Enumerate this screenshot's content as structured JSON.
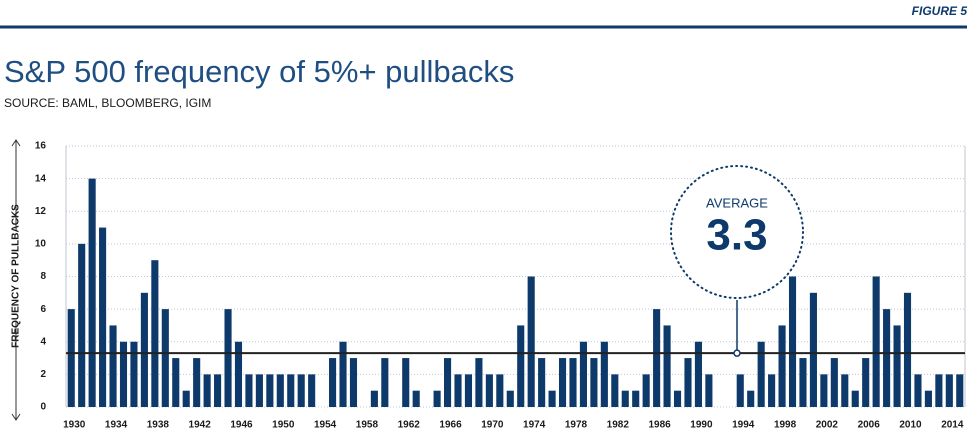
{
  "chart_data": {
    "type": "bar",
    "figure_label": "FIGURE 5",
    "title": "S&P 500 frequency of 5%+ pullbacks",
    "subtitle": "SOURCE: BAML, BLOOMBERG, IGIM",
    "y_label": "FREQUENCY OF PULLBACKS",
    "color": "#0e3a6b",
    "categories": [
      "1930",
      null,
      null,
      null,
      "1934",
      null,
      null,
      null,
      "1938",
      null,
      null,
      null,
      "1942",
      null,
      null,
      null,
      "1946",
      null,
      null,
      null,
      "1950",
      null,
      null,
      null,
      "1954",
      null,
      null,
      null,
      "1958",
      null,
      null,
      null,
      "1962",
      null,
      null,
      null,
      "1966",
      null,
      null,
      null,
      "1970",
      null,
      null,
      null,
      "1974",
      null,
      null,
      null,
      "1978",
      null,
      null,
      null,
      "1982",
      null,
      null,
      null,
      "1986",
      null,
      null,
      null,
      "1990",
      null,
      null,
      null,
      "1994",
      null,
      null,
      null,
      "1998",
      null,
      null,
      null,
      "2002",
      null,
      null,
      null,
      "2006",
      null,
      null,
      null,
      "2010",
      null,
      null,
      null,
      "2014",
      null
    ],
    "values": [
      6,
      10,
      14,
      11,
      5,
      4,
      4,
      7,
      9,
      6,
      3,
      1,
      3,
      2,
      2,
      6,
      4,
      2,
      2,
      2,
      2,
      2,
      2,
      2,
      0,
      3,
      4,
      3,
      0,
      1,
      3,
      0,
      3,
      1,
      0,
      1,
      3,
      2,
      2,
      3,
      2,
      2,
      1,
      5,
      8,
      3,
      1,
      3,
      3,
      4,
      3,
      4,
      2,
      1,
      1,
      2,
      6,
      5,
      1,
      3,
      4,
      2,
      0,
      0,
      2,
      1,
      4,
      2,
      5,
      8,
      3,
      7,
      2,
      3,
      2,
      1,
      3,
      8,
      6,
      5,
      7,
      2,
      1,
      2,
      2,
      2
    ],
    "ylim": [
      0,
      16
    ],
    "yticks": [
      0,
      2,
      4,
      6,
      8,
      10,
      12,
      14,
      16
    ],
    "grid": true,
    "average": {
      "label": "AVERAGE",
      "value": 3.3
    }
  }
}
